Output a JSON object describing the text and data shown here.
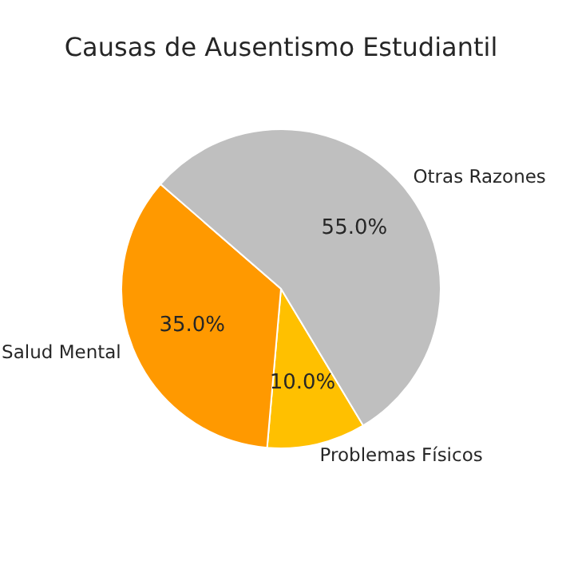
{
  "chart_data": {
    "type": "pie",
    "title": "Causas de Ausentismo Estudiantil",
    "categories": [
      "Otras Razones",
      "Salud Mental",
      "Problemas Físicos"
    ],
    "values": [
      55,
      35,
      10
    ],
    "colors": [
      "#bfbfbf",
      "#ff9900",
      "#ffc000"
    ],
    "value_labels": [
      "55.0%",
      "35.0%",
      "10.0%"
    ]
  }
}
